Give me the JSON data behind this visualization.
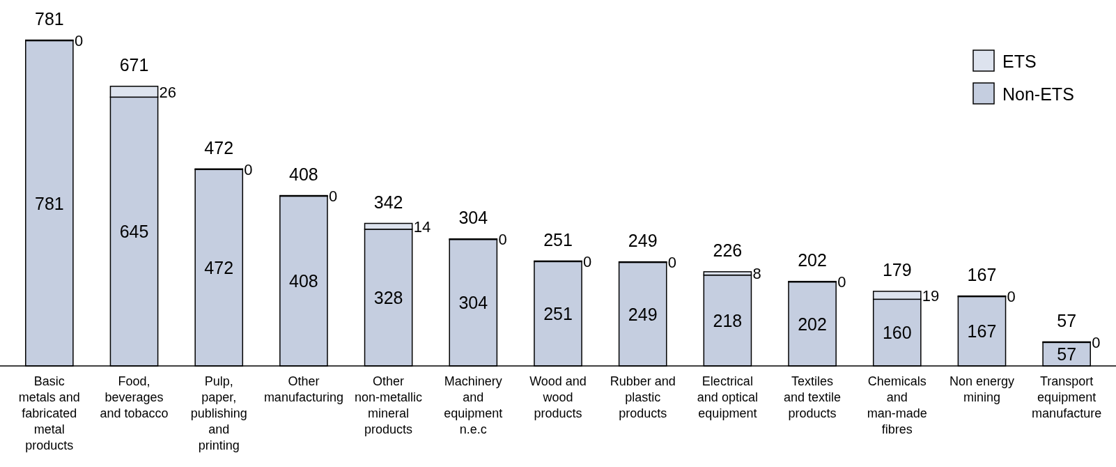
{
  "chart_data": {
    "type": "bar",
    "stacked": true,
    "data_labels": true,
    "legend": "top right",
    "categories": [
      "Basic metals and fabricated metal products",
      "Food, beverages and tobacco",
      "Pulp, paper, publishing and printing",
      "Other manufacturing",
      "Other non-metallic mineral products",
      "Machinery and equipment n.e.c",
      "Wood and wood products",
      "Rubber and plastic products",
      "Electrical and optical equipment",
      "Textiles and textile products",
      "Chemicals and man-made fibres",
      "Non energy mining",
      "Transport equipment manufacture"
    ],
    "series": [
      {
        "name": "Non-ETS",
        "color": "#c5cee0",
        "values": [
          781,
          645,
          472,
          408,
          328,
          304,
          251,
          249,
          218,
          202,
          160,
          167,
          57
        ]
      },
      {
        "name": "ETS",
        "color": "#dde3ee",
        "values": [
          0,
          26,
          0,
          0,
          14,
          0,
          0,
          0,
          8,
          0,
          19,
          0,
          0
        ]
      }
    ],
    "totals": [
      "781",
      "671",
      "472",
      "408",
      "342",
      "304",
      "251",
      "249",
      "226",
      "202",
      "179",
      "167",
      "57"
    ]
  }
}
